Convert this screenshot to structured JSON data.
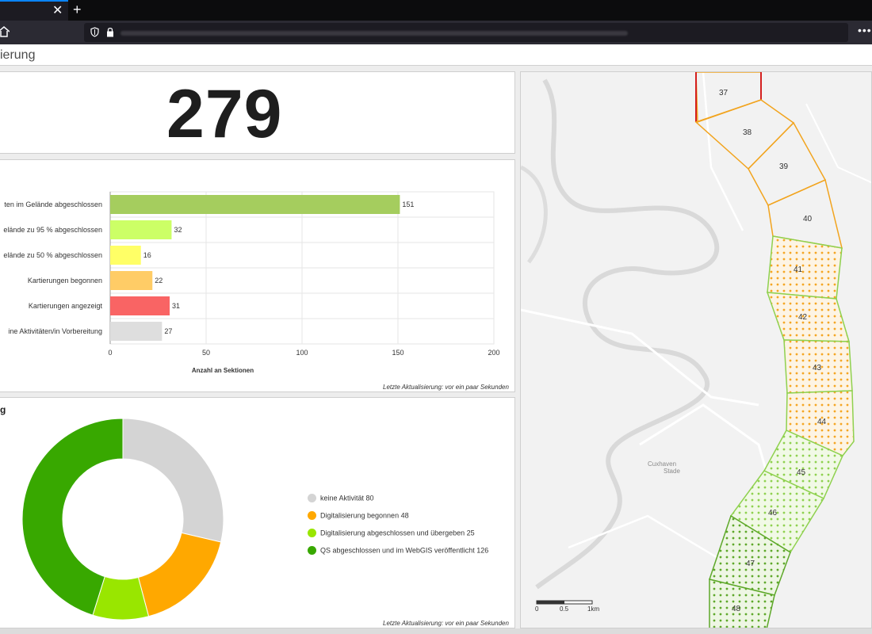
{
  "browser": {
    "close_tab_glyph": "✕",
    "new_tab_glyph": "+",
    "menu_glyph": "•••"
  },
  "app": {
    "title": "ierung"
  },
  "indicator": {
    "value": "279"
  },
  "bar_footer": "Letzte Aktualisierung: vor ein paar Sekunden",
  "donut_title": "g",
  "donut_footer": "Letzte Aktualisierung: vor ein paar Sekunden",
  "chart_data": [
    {
      "type": "bar",
      "orientation": "horizontal",
      "categories": [
        "ten im Gelände abgeschlossen",
        "elände zu 95 % abgeschlossen",
        "elände zu 50 % abgeschlossen",
        "Kartierungen begonnen",
        "Kartierungen angezeigt",
        "ine Aktivitäten/in Vorbereitung"
      ],
      "values": [
        151,
        32,
        16,
        22,
        31,
        27
      ],
      "colors": [
        "#a5cd5e",
        "#ccff66",
        "#ffff66",
        "#ffcc66",
        "#f96464",
        "#dedede"
      ],
      "xlabel": "Anzahl an Sektionen",
      "xlim": [
        0,
        200
      ],
      "xticks": [
        0,
        50,
        100,
        150,
        200
      ],
      "grid": true
    },
    {
      "type": "pie",
      "donut": true,
      "labels": [
        "keine Aktivität",
        "Digitalisierung begonnen",
        "Digitalisierung abgeschlossen und übergeben",
        "QS abgeschlossen und im WebGIS veröffentlicht"
      ],
      "values": [
        80,
        48,
        25,
        126
      ],
      "colors": [
        "#d4d4d4",
        "#ffa800",
        "#99e600",
        "#38a800"
      ],
      "legend": "right"
    }
  ],
  "map": {
    "place_label_1": "Cuxhaven",
    "place_label_2": "Stade",
    "scale_labels": [
      "0",
      "0.5",
      "1km"
    ],
    "section_labels": [
      "37",
      "38",
      "39",
      "40",
      "41",
      "42",
      "43",
      "44",
      "45",
      "46",
      "47",
      "48"
    ]
  }
}
